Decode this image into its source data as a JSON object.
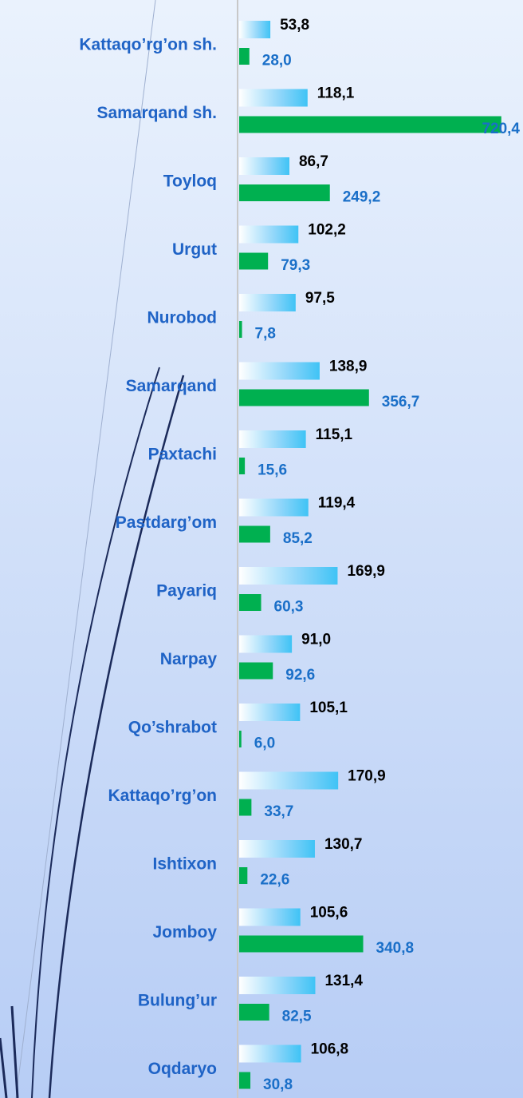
{
  "chart_data": {
    "type": "bar",
    "orientation": "horizontal",
    "categories": [
      "Kattaqo’rg’on sh.",
      "Samarqand sh.",
      "Toyloq",
      "Urgut",
      "Nurobod",
      "Samarqand",
      "Paxtachi",
      "Pastdarg’om",
      "Payariq",
      "Narpay",
      "Qo’shrabot",
      "Kattaqo’rg’on",
      "Ishtixon",
      "Jomboy",
      "Bulung’ur",
      "Oqdaryo"
    ],
    "xlim": [
      0,
      490
    ],
    "x2lim": [
      0,
      780
    ],
    "series": [
      {
        "color": "#3fc3f5",
        "values": [
          53.8,
          118.1,
          86.7,
          102.2,
          97.5,
          138.9,
          115.1,
          119.4,
          169.9,
          91.0,
          105.1,
          170.9,
          130.7,
          105.6,
          131.4,
          106.8
        ],
        "value_labels": [
          "53,8",
          "118,1",
          "86,7",
          "102,2",
          "97,5",
          "138,9",
          "115,1",
          "119,4",
          "169,9",
          "91,0",
          "105,1",
          "170,9",
          "130,7",
          "105,6",
          "131,4",
          "106,8"
        ]
      },
      {
        "color": "#00b050",
        "axis": "x2",
        "values": [
          28.0,
          720.4,
          249.2,
          79.3,
          7.8,
          356.7,
          15.6,
          85.2,
          60.3,
          92.6,
          6.0,
          33.7,
          22.6,
          340.8,
          82.5,
          30.8
        ],
        "value_labels": [
          "28,0",
          "720,4",
          "249,2",
          "79,3",
          "7,8",
          "356,7",
          "15,6",
          "85,2",
          "60,3",
          "92,6",
          "6,0",
          "33,7",
          "22,6",
          "340,8",
          "82,5",
          "30,8"
        ]
      }
    ]
  }
}
